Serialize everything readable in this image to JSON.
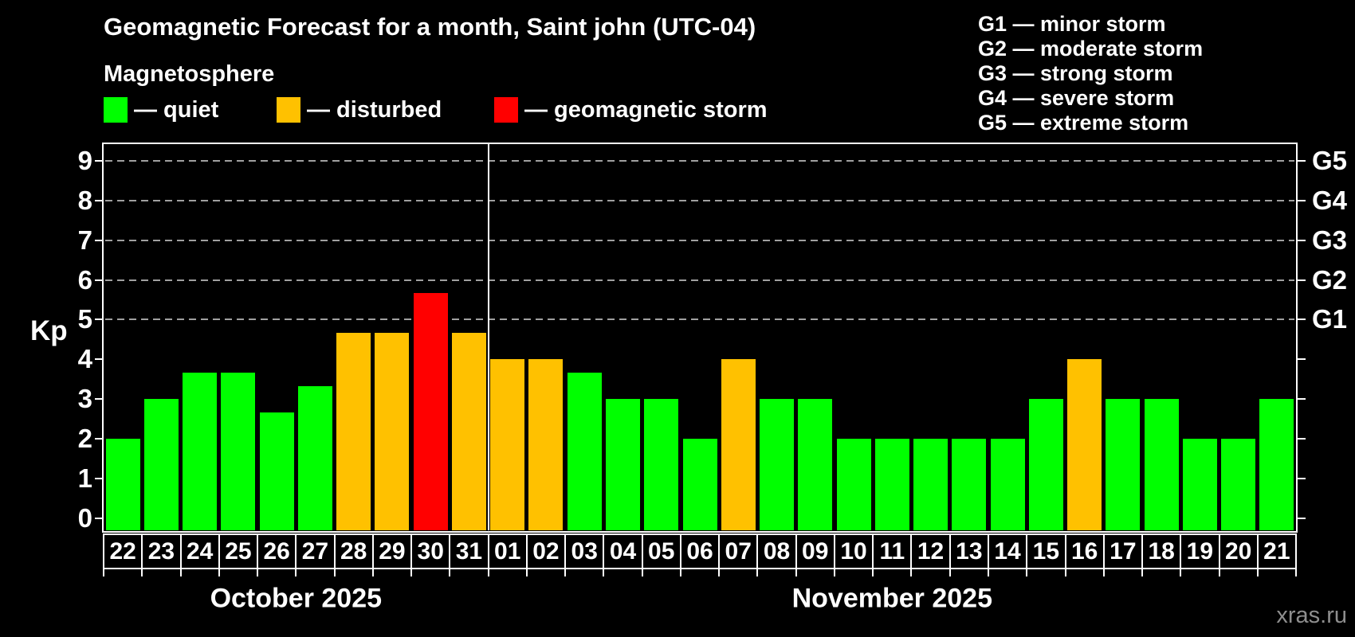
{
  "title": "Geomagnetic Forecast for a month, Saint john (UTC-04)",
  "subtitle": "Magnetosphere",
  "legend": {
    "items": [
      {
        "key": "quiet",
        "label": "— quiet",
        "color": "#00ff00"
      },
      {
        "key": "disturbed",
        "label": "— disturbed",
        "color": "#ffc100"
      },
      {
        "key": "storm",
        "label": "— geomagnetic storm",
        "color": "#ff0000"
      }
    ]
  },
  "g_legend": {
    "lines": [
      "G1 — minor storm",
      "G2 — moderate storm",
      "G3 — strong storm",
      "G4 — severe storm",
      "G5 — extreme storm"
    ]
  },
  "watermark": "xras.ru",
  "chart_data": {
    "type": "bar",
    "title": "Geomagnetic Forecast for a month, Saint john (UTC-04)",
    "ylabel": "Kp",
    "ylim": [
      -0.35,
      9.4
    ],
    "grid": "dashed horizontal at storm levels",
    "kp_ticks": [
      0,
      1,
      2,
      3,
      4,
      5,
      6,
      7,
      8,
      9
    ],
    "grid_kp": [
      5,
      6,
      7,
      8,
      9
    ],
    "g_ticks": [
      {
        "label": "G1",
        "kp": 5
      },
      {
        "label": "G2",
        "kp": 6
      },
      {
        "label": "G3",
        "kp": 7
      },
      {
        "label": "G4",
        "kp": 8
      },
      {
        "label": "G5",
        "kp": 9
      }
    ],
    "months": [
      {
        "label": "October 2025",
        "days": [
          "22",
          "23",
          "24",
          "25",
          "26",
          "27",
          "28",
          "29",
          "30",
          "31"
        ]
      },
      {
        "label": "November 2025",
        "days": [
          "01",
          "02",
          "03",
          "04",
          "05",
          "06",
          "07",
          "08",
          "09",
          "10",
          "11",
          "12",
          "13",
          "14",
          "15",
          "16",
          "17",
          "18",
          "19",
          "20",
          "21"
        ]
      }
    ],
    "values": [
      2.0,
      3.0,
      3.67,
      3.67,
      2.67,
      3.33,
      4.67,
      4.67,
      5.67,
      4.67,
      4.0,
      4.0,
      3.67,
      3.0,
      3.0,
      2.0,
      4.0,
      3.0,
      3.0,
      2.0,
      2.0,
      2.0,
      2.0,
      2.0,
      3.0,
      4.0,
      3.0,
      3.0,
      2.0,
      2.0,
      3.0
    ],
    "color_rules": {
      "disturbed_from_kp": 4,
      "storm_from_kp": 5
    },
    "colors": {
      "quiet": "#00ff00",
      "disturbed": "#ffc100",
      "storm": "#ff0000",
      "grid": "#a0a0a0",
      "axis": "#ffffff"
    }
  }
}
